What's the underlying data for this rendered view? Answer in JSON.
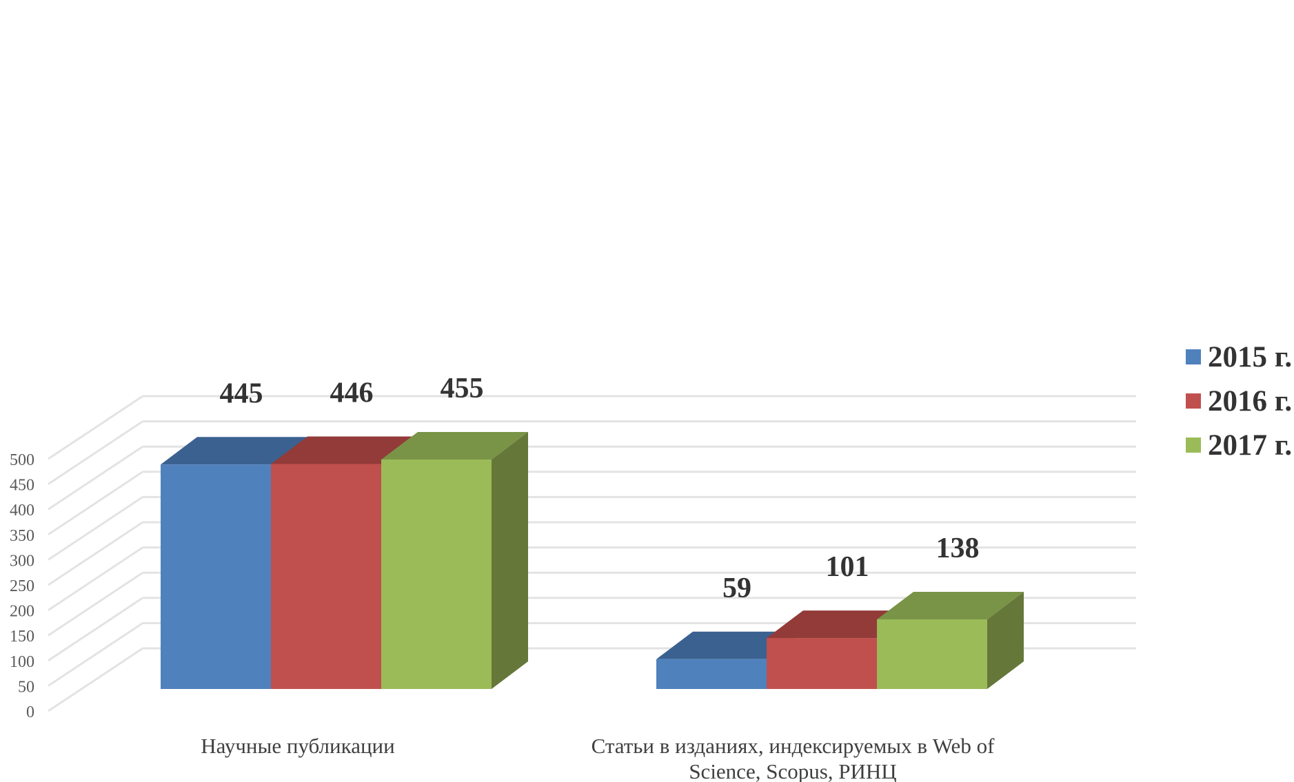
{
  "chart_data": {
    "type": "bar",
    "categories": [
      [
        "Научные публикации"
      ],
      [
        "Статьи в изданиях, индексируемых в Web of",
        "Science, Scopus, РИНЦ"
      ]
    ],
    "series": [
      {
        "name": "2015 г.",
        "values": [
          445,
          59
        ],
        "color": "#4f81bd",
        "top_color": "#3b6190",
        "side_color": "#355781"
      },
      {
        "name": "2016 г.",
        "values": [
          446,
          101
        ],
        "color": "#c0504d",
        "top_color": "#923b39",
        "side_color": "#843634"
      },
      {
        "name": "2017 г.",
        "values": [
          455,
          138
        ],
        "color": "#9bbb59",
        "top_color": "#7a9447",
        "side_color": "#66773a"
      }
    ],
    "y_ticks": [
      0,
      50,
      100,
      150,
      200,
      250,
      300,
      350,
      400,
      450,
      500
    ],
    "ylim": [
      0,
      550
    ],
    "grid": true,
    "legend_position": "right",
    "three_d": true,
    "title": "",
    "xlabel": "",
    "ylabel": ""
  }
}
